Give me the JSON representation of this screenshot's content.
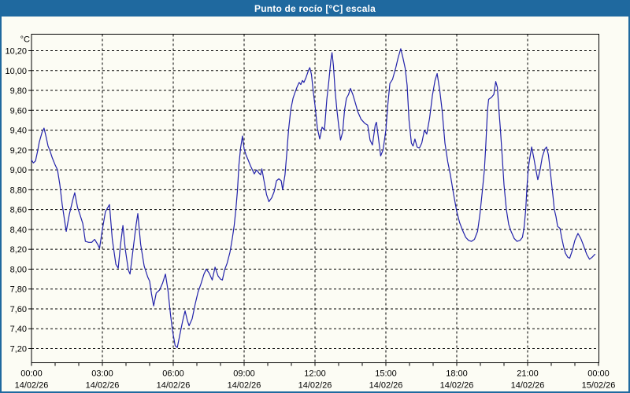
{
  "window": {
    "title": "Punto de rocío [°C] escala"
  },
  "colors": {
    "titlebar_bg": "#1f699f",
    "frame_border": "#1f699f",
    "background": "#fcfcf4",
    "line": "#2222aa",
    "grid": "#000000",
    "text": "#000000"
  },
  "chart_data": {
    "type": "line",
    "title": "Punto de rocío [°C] escala",
    "y_unit": "°C",
    "ylabel": "",
    "xlabel": "",
    "ylim": [
      7.2,
      10.2
    ],
    "xlim_hours": [
      0,
      24
    ],
    "grid": "dashed black, vertical every 3h, horizontal every 0.2°C, hourly minor ticks",
    "legend_position": "none",
    "y_ticks": [
      {
        "label": "10,20",
        "value": 10.2
      },
      {
        "label": "10,00",
        "value": 10.0
      },
      {
        "label": "9,80",
        "value": 9.8
      },
      {
        "label": "9,60",
        "value": 9.6
      },
      {
        "label": "9,40",
        "value": 9.4
      },
      {
        "label": "9,20",
        "value": 9.2
      },
      {
        "label": "9,00",
        "value": 9.0
      },
      {
        "label": "8,80",
        "value": 8.8
      },
      {
        "label": "8,60",
        "value": 8.6
      },
      {
        "label": "8,40",
        "value": 8.4
      },
      {
        "label": "8,20",
        "value": 8.2
      },
      {
        "label": "8,00",
        "value": 8.0
      },
      {
        "label": "7,80",
        "value": 7.8
      },
      {
        "label": "7,60",
        "value": 7.6
      },
      {
        "label": "7,40",
        "value": 7.4
      },
      {
        "label": "7,20",
        "value": 7.2
      }
    ],
    "x_ticks": [
      {
        "hour": 0,
        "time": "00:00",
        "date": "14/02/26"
      },
      {
        "hour": 3,
        "time": "03:00",
        "date": "14/02/26"
      },
      {
        "hour": 6,
        "time": "06:00",
        "date": "14/02/26"
      },
      {
        "hour": 9,
        "time": "09:00",
        "date": "14/02/26"
      },
      {
        "hour": 12,
        "time": "12:00",
        "date": "14/02/26"
      },
      {
        "hour": 15,
        "time": "15:00",
        "date": "14/02/26"
      },
      {
        "hour": 18,
        "time": "18:00",
        "date": "14/02/26"
      },
      {
        "hour": 21,
        "time": "21:00",
        "date": "14/02/26"
      },
      {
        "hour": 24,
        "time": "00:00",
        "date": "15/02/26"
      }
    ],
    "series": [
      {
        "name": "Punto de rocío [°C]",
        "color": "#2222aa",
        "points_hour_value": [
          [
            0.0,
            9.1
          ],
          [
            0.08,
            9.07
          ],
          [
            0.17,
            9.09
          ],
          [
            0.25,
            9.18
          ],
          [
            0.33,
            9.28
          ],
          [
            0.45,
            9.38
          ],
          [
            0.53,
            9.42
          ],
          [
            0.62,
            9.33
          ],
          [
            0.7,
            9.24
          ],
          [
            0.77,
            9.2
          ],
          [
            0.88,
            9.12
          ],
          [
            1.0,
            9.05
          ],
          [
            1.1,
            9.0
          ],
          [
            1.2,
            8.85
          ],
          [
            1.3,
            8.65
          ],
          [
            1.47,
            8.38
          ],
          [
            1.6,
            8.55
          ],
          [
            1.75,
            8.7
          ],
          [
            1.83,
            8.77
          ],
          [
            1.95,
            8.62
          ],
          [
            2.05,
            8.55
          ],
          [
            2.17,
            8.46
          ],
          [
            2.28,
            8.28
          ],
          [
            2.42,
            8.27
          ],
          [
            2.55,
            8.27
          ],
          [
            2.67,
            8.3
          ],
          [
            2.8,
            8.25
          ],
          [
            2.88,
            8.21
          ],
          [
            3.0,
            8.4
          ],
          [
            3.13,
            8.58
          ],
          [
            3.3,
            8.65
          ],
          [
            3.42,
            8.3
          ],
          [
            3.57,
            8.05
          ],
          [
            3.67,
            8.01
          ],
          [
            3.77,
            8.25
          ],
          [
            3.87,
            8.44
          ],
          [
            3.97,
            8.2
          ],
          [
            4.1,
            7.99
          ],
          [
            4.17,
            7.95
          ],
          [
            4.3,
            8.2
          ],
          [
            4.43,
            8.45
          ],
          [
            4.5,
            8.56
          ],
          [
            4.62,
            8.25
          ],
          [
            4.77,
            8.03
          ],
          [
            4.92,
            7.92
          ],
          [
            5.0,
            7.88
          ],
          [
            5.08,
            7.75
          ],
          [
            5.17,
            7.63
          ],
          [
            5.28,
            7.76
          ],
          [
            5.42,
            7.79
          ],
          [
            5.55,
            7.86
          ],
          [
            5.67,
            7.95
          ],
          [
            5.78,
            7.78
          ],
          [
            5.88,
            7.55
          ],
          [
            5.97,
            7.38
          ],
          [
            6.08,
            7.23
          ],
          [
            6.17,
            7.21
          ],
          [
            6.28,
            7.34
          ],
          [
            6.4,
            7.48
          ],
          [
            6.5,
            7.58
          ],
          [
            6.6,
            7.48
          ],
          [
            6.67,
            7.43
          ],
          [
            6.8,
            7.5
          ],
          [
            6.93,
            7.65
          ],
          [
            7.05,
            7.77
          ],
          [
            7.17,
            7.85
          ],
          [
            7.3,
            7.95
          ],
          [
            7.4,
            8.0
          ],
          [
            7.52,
            7.96
          ],
          [
            7.65,
            7.89
          ],
          [
            7.77,
            8.02
          ],
          [
            7.9,
            7.93
          ],
          [
            8.0,
            7.9
          ],
          [
            8.08,
            7.89
          ],
          [
            8.17,
            7.99
          ],
          [
            8.28,
            8.06
          ],
          [
            8.4,
            8.17
          ],
          [
            8.5,
            8.31
          ],
          [
            8.58,
            8.44
          ],
          [
            8.65,
            8.6
          ],
          [
            8.72,
            8.8
          ],
          [
            8.78,
            9.05
          ],
          [
            8.85,
            9.22
          ],
          [
            8.93,
            9.34
          ],
          [
            9.0,
            9.21
          ],
          [
            9.08,
            9.15
          ],
          [
            9.17,
            9.1
          ],
          [
            9.27,
            9.04
          ],
          [
            9.35,
            9.0
          ],
          [
            9.43,
            8.96
          ],
          [
            9.53,
            9.0
          ],
          [
            9.62,
            8.97
          ],
          [
            9.7,
            8.95
          ],
          [
            9.75,
            9.01
          ],
          [
            9.85,
            8.88
          ],
          [
            9.95,
            8.75
          ],
          [
            10.05,
            8.68
          ],
          [
            10.17,
            8.72
          ],
          [
            10.27,
            8.78
          ],
          [
            10.37,
            8.89
          ],
          [
            10.47,
            8.91
          ],
          [
            10.57,
            8.89
          ],
          [
            10.63,
            8.8
          ],
          [
            10.73,
            8.95
          ],
          [
            10.8,
            9.15
          ],
          [
            10.88,
            9.4
          ],
          [
            10.97,
            9.6
          ],
          [
            11.07,
            9.72
          ],
          [
            11.17,
            9.79
          ],
          [
            11.25,
            9.84
          ],
          [
            11.33,
            9.88
          ],
          [
            11.4,
            9.86
          ],
          [
            11.47,
            9.9
          ],
          [
            11.53,
            9.88
          ],
          [
            11.62,
            9.93
          ],
          [
            11.72,
            10.0
          ],
          [
            11.78,
            10.03
          ],
          [
            11.85,
            9.96
          ],
          [
            11.93,
            9.78
          ],
          [
            12.0,
            9.65
          ],
          [
            12.1,
            9.42
          ],
          [
            12.2,
            9.31
          ],
          [
            12.3,
            9.43
          ],
          [
            12.4,
            9.4
          ],
          [
            12.5,
            9.71
          ],
          [
            12.58,
            9.88
          ],
          [
            12.67,
            10.1
          ],
          [
            12.72,
            10.18
          ],
          [
            12.78,
            10.05
          ],
          [
            12.85,
            9.8
          ],
          [
            12.92,
            9.62
          ],
          [
            13.0,
            9.45
          ],
          [
            13.08,
            9.3
          ],
          [
            13.17,
            9.38
          ],
          [
            13.25,
            9.6
          ],
          [
            13.33,
            9.72
          ],
          [
            13.42,
            9.76
          ],
          [
            13.5,
            9.82
          ],
          [
            13.6,
            9.76
          ],
          [
            13.7,
            9.68
          ],
          [
            13.82,
            9.58
          ],
          [
            13.95,
            9.51
          ],
          [
            14.1,
            9.47
          ],
          [
            14.23,
            9.45
          ],
          [
            14.33,
            9.3
          ],
          [
            14.43,
            9.25
          ],
          [
            14.55,
            9.45
          ],
          [
            14.6,
            9.48
          ],
          [
            14.68,
            9.33
          ],
          [
            14.78,
            9.14
          ],
          [
            14.88,
            9.2
          ],
          [
            15.0,
            9.4
          ],
          [
            15.08,
            9.65
          ],
          [
            15.17,
            9.87
          ],
          [
            15.28,
            9.91
          ],
          [
            15.42,
            10.03
          ],
          [
            15.52,
            10.13
          ],
          [
            15.63,
            10.22
          ],
          [
            15.72,
            10.13
          ],
          [
            15.82,
            10.02
          ],
          [
            15.9,
            9.85
          ],
          [
            15.98,
            9.5
          ],
          [
            16.08,
            9.27
          ],
          [
            16.15,
            9.24
          ],
          [
            16.23,
            9.31
          ],
          [
            16.32,
            9.23
          ],
          [
            16.42,
            9.22
          ],
          [
            16.52,
            9.27
          ],
          [
            16.63,
            9.4
          ],
          [
            16.73,
            9.36
          ],
          [
            16.85,
            9.52
          ],
          [
            16.97,
            9.75
          ],
          [
            17.08,
            9.9
          ],
          [
            17.17,
            9.97
          ],
          [
            17.28,
            9.8
          ],
          [
            17.38,
            9.6
          ],
          [
            17.5,
            9.27
          ],
          [
            17.62,
            9.08
          ],
          [
            17.73,
            8.95
          ],
          [
            17.87,
            8.75
          ],
          [
            18.0,
            8.58
          ],
          [
            18.12,
            8.47
          ],
          [
            18.25,
            8.39
          ],
          [
            18.38,
            8.32
          ],
          [
            18.5,
            8.29
          ],
          [
            18.62,
            8.28
          ],
          [
            18.75,
            8.3
          ],
          [
            18.88,
            8.38
          ],
          [
            18.98,
            8.55
          ],
          [
            19.08,
            8.78
          ],
          [
            19.17,
            9.0
          ],
          [
            19.23,
            9.25
          ],
          [
            19.3,
            9.6
          ],
          [
            19.35,
            9.71
          ],
          [
            19.47,
            9.73
          ],
          [
            19.57,
            9.76
          ],
          [
            19.65,
            9.89
          ],
          [
            19.72,
            9.83
          ],
          [
            19.78,
            9.62
          ],
          [
            19.85,
            9.4
          ],
          [
            19.92,
            9.15
          ],
          [
            20.0,
            8.85
          ],
          [
            20.1,
            8.6
          ],
          [
            20.2,
            8.45
          ],
          [
            20.3,
            8.38
          ],
          [
            20.43,
            8.31
          ],
          [
            20.55,
            8.28
          ],
          [
            20.68,
            8.29
          ],
          [
            20.78,
            8.32
          ],
          [
            20.85,
            8.42
          ],
          [
            20.92,
            8.6
          ],
          [
            20.97,
            8.82
          ],
          [
            21.03,
            9.02
          ],
          [
            21.1,
            9.13
          ],
          [
            21.17,
            9.23
          ],
          [
            21.27,
            9.11
          ],
          [
            21.35,
            9.0
          ],
          [
            21.43,
            8.9
          ],
          [
            21.52,
            8.99
          ],
          [
            21.62,
            9.13
          ],
          [
            21.73,
            9.21
          ],
          [
            21.8,
            9.23
          ],
          [
            21.88,
            9.15
          ],
          [
            21.95,
            9.01
          ],
          [
            22.02,
            8.85
          ],
          [
            22.08,
            8.72
          ],
          [
            22.13,
            8.6
          ],
          [
            22.2,
            8.53
          ],
          [
            22.27,
            8.43
          ],
          [
            22.37,
            8.41
          ],
          [
            22.43,
            8.33
          ],
          [
            22.52,
            8.23
          ],
          [
            22.6,
            8.16
          ],
          [
            22.7,
            8.12
          ],
          [
            22.78,
            8.11
          ],
          [
            22.88,
            8.18
          ],
          [
            23.0,
            8.29
          ],
          [
            23.13,
            8.36
          ],
          [
            23.25,
            8.31
          ],
          [
            23.38,
            8.23
          ],
          [
            23.5,
            8.15
          ],
          [
            23.62,
            8.1
          ],
          [
            23.73,
            8.12
          ],
          [
            23.85,
            8.15
          ]
        ]
      }
    ]
  }
}
